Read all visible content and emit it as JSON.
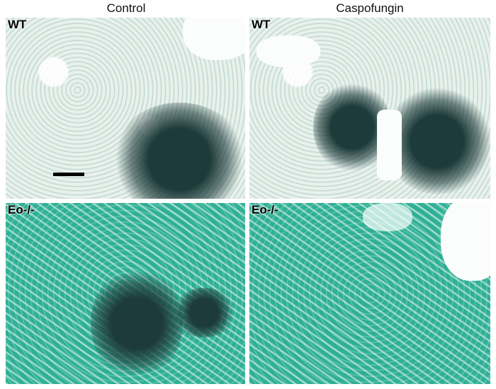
{
  "columns": [
    "Control",
    "Caspofungin"
  ],
  "panels": [
    {
      "label": "WT",
      "column": "Control",
      "genotype": "WT"
    },
    {
      "label": "WT",
      "column": "Caspofungin",
      "genotype": "WT"
    },
    {
      "label": "Eo-/-",
      "column": "Control",
      "genotype": "Eo-/-"
    },
    {
      "label": "Eo-/-",
      "column": "Caspofungin",
      "genotype": "Eo-/-"
    }
  ],
  "colors": {
    "tissue_top": "#dfeae5",
    "tissue_bottom": "#2fae92",
    "fungus": "#1d3b3a"
  }
}
